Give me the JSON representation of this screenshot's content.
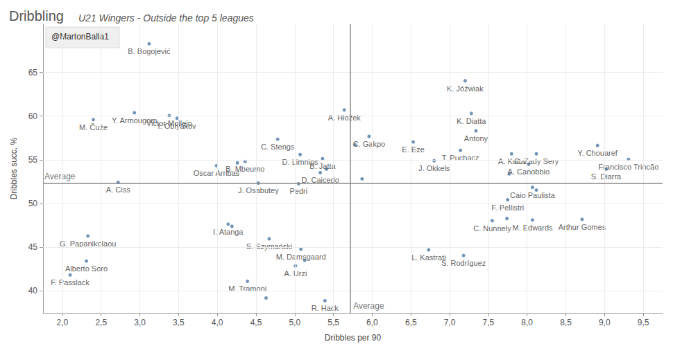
{
  "chart_data": {
    "type": "scatter",
    "title": "Dribbling",
    "subtitle": "U21 Wingers - Outside the top 5 leagues",
    "credit": "@MartonBalla1",
    "x_label": "Dribbles per 90",
    "y_label": "Dribbles succ. %",
    "color": "#4e79a7",
    "marker": "circle",
    "grid": true,
    "xlim": [
      1.75,
      9.75
    ],
    "ylim": [
      37.5,
      70.5
    ],
    "xticks": [
      {
        "value": 2,
        "label": "2,0"
      },
      {
        "value": 2.5,
        "label": "2,5"
      },
      {
        "value": 3,
        "label": "3,0"
      },
      {
        "value": 3.5,
        "label": "3,5"
      },
      {
        "value": 4,
        "label": "4,0"
      },
      {
        "value": 4.5,
        "label": "4,5"
      },
      {
        "value": 5,
        "label": "5,0"
      },
      {
        "value": 5.5,
        "label": "5,5"
      },
      {
        "value": 6,
        "label": "6,0"
      },
      {
        "value": 6.5,
        "label": "6,5"
      },
      {
        "value": 7,
        "label": "7,0"
      },
      {
        "value": 7.5,
        "label": "7,5"
      },
      {
        "value": 8,
        "label": "8,0"
      },
      {
        "value": 8.5,
        "label": "8,5"
      },
      {
        "value": 9,
        "label": "9,0"
      },
      {
        "value": 9.5,
        "label": "9,5"
      }
    ],
    "yticks": [
      40,
      45,
      50,
      55,
      60,
      65
    ],
    "reference_lines": [
      {
        "axis": "x",
        "value": 5.72,
        "label": "Average"
      },
      {
        "axis": "y",
        "value": 52.34,
        "label": "Average"
      }
    ],
    "labels": [
      "B. Bogojević",
      "Y. Armougom",
      "M. Čuže",
      "Victor Mollejo",
      "I. Oblyakov",
      "A. Ciss",
      "G. Papanikolaou",
      "Alberto Soro",
      "F. Passlack",
      "Oscar Arribas",
      "J. Osabutey",
      "B. Mbeumo",
      null,
      "C. Stengs",
      "D. Limnios",
      "B. Jatta",
      null,
      "D. Caicedo",
      "Pedri",
      "A. Hložek",
      null,
      "C. Gakpo",
      null,
      "E. Eze",
      "J. Okkels",
      "T. Puchacz",
      "K. Jóźwiak",
      "K. Diatta",
      "Antony",
      "A. Koita",
      "C. Zady Sery",
      "A. Canobbio",
      null,
      "Caio Paulista",
      null,
      "F. Pellistri",
      "C. Nunnely",
      null,
      "M. Edwards",
      "Arthur Gomes",
      "Y. Chouaref",
      "Francisco Trincão",
      "S. Diarra",
      "I. Atanga",
      null,
      "S. Szymański",
      "M. Damsgaard",
      null,
      "A. Urzi",
      "M. Tramoni",
      null,
      "R. Hack",
      "L. Kastrati",
      "S. Rodríguez"
    ],
    "x": [
      3.12,
      2.93,
      2.4,
      3.38,
      3.48,
      2.72,
      2.33,
      2.31,
      2.1,
      3.99,
      4.53,
      4.36,
      4.26,
      4.78,
      5.07,
      5.36,
      5.41,
      5.33,
      5.05,
      5.64,
      5.78,
      5.96,
      5.87,
      6.53,
      6.8,
      7.14,
      7.2,
      7.28,
      7.34,
      7.8,
      8.12,
      8.02,
      7.77,
      8.07,
      8.12,
      7.75,
      7.55,
      7.74,
      8.07,
      8.71,
      8.91,
      9.31,
      9.02,
      4.14,
      4.19,
      4.67,
      5.08,
      5.13,
      5.01,
      4.39,
      4.63,
      5.39,
      6.73,
      7.18
    ],
    "y": [
      68.26,
      60.38,
      59.59,
      60.06,
      59.75,
      52.42,
      46.29,
      43.42,
      41.83,
      54.33,
      52.34,
      54.81,
      54.65,
      57.36,
      55.6,
      55.13,
      53.93,
      53.53,
      52.26,
      60.7,
      56.72,
      57.68,
      52.82,
      57.04,
      54.89,
      56.08,
      64.04,
      60.3,
      58.31,
      55.68,
      55.68,
      54.49,
      53.38,
      51.86,
      51.54,
      50.43,
      48.04,
      48.28,
      48.12,
      48.2,
      56.64,
      55.05,
      53.93,
      47.64,
      47.4,
      45.97,
      44.78,
      43.5,
      42.87,
      41.11,
      39.2,
      38.89,
      44.7,
      44.06
    ]
  }
}
